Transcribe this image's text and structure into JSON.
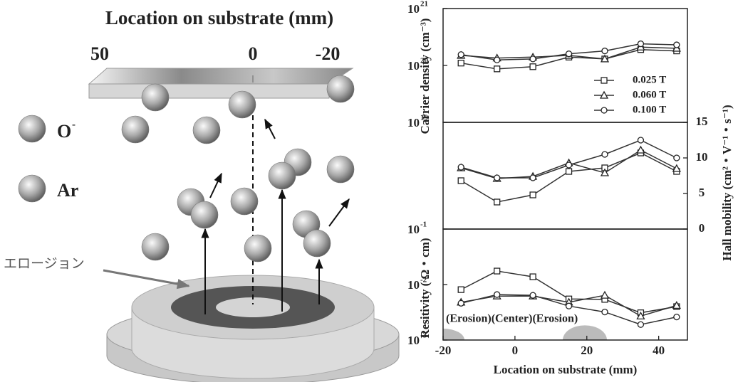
{
  "diagram": {
    "title": "Location on substrate (mm)",
    "positions": [
      "50",
      "0",
      "-20"
    ],
    "legend": [
      {
        "label": "O",
        "sup": "-"
      },
      {
        "label": "Ar"
      }
    ],
    "erosion_label": "エロージョン"
  },
  "chart_data": [
    {
      "type": "line",
      "yscale": "log",
      "ylabel": "Carrier density (cm⁻³)",
      "x": [
        -15,
        -5,
        5,
        15,
        25,
        35,
        45
      ],
      "xlim": [
        -20,
        48
      ],
      "ylim": [
        1e+19,
        1e+21
      ],
      "yticks": [
        {
          "value": 1e+19,
          "label": "10",
          "label_sup": "19"
        },
        {
          "value": 1e+20,
          "label": "10",
          "label_sup": "20"
        },
        {
          "value": 1e+21,
          "label": "10",
          "label_sup": "21"
        }
      ],
      "series": [
        {
          "name": "0.025 T",
          "marker": "square",
          "color": "#333",
          "values": [
            1.1e+20,
            8.7e+19,
            9.5e+19,
            1.4e+20,
            1.3e+20,
            1.9e+20,
            1.8e+20
          ]
        },
        {
          "name": "0.060 T",
          "marker": "triangle",
          "color": "#333",
          "values": [
            1.5e+20,
            1.35e+20,
            1.4e+20,
            1.5e+20,
            1.3e+20,
            2.1e+20,
            2e+20
          ]
        },
        {
          "name": "0.100 T",
          "marker": "circle",
          "color": "#333",
          "values": [
            1.55e+20,
            1.25e+20,
            1.3e+20,
            1.6e+20,
            1.8e+20,
            2.4e+20,
            2.3e+20
          ]
        }
      ]
    },
    {
      "type": "line",
      "y2label": "Hall mobility (cm²・V⁻¹・s⁻¹)",
      "x": [
        -15,
        -5,
        5,
        15,
        25,
        35,
        45
      ],
      "xlim": [
        -20,
        48
      ],
      "y2lim": [
        0,
        15
      ],
      "y2ticks": [
        0,
        5,
        10,
        15
      ],
      "series": [
        {
          "axis": "y2",
          "marker": "square",
          "color": "#333",
          "values": [
            6.8,
            3.8,
            4.8,
            8.1,
            8.6,
            10.7,
            8.1
          ]
        },
        {
          "axis": "y2",
          "marker": "triangle",
          "color": "#333",
          "values": [
            8.6,
            7.1,
            7.4,
            9.3,
            7.9,
            11.1,
            8.5
          ]
        },
        {
          "axis": "y2",
          "marker": "circle",
          "color": "#333",
          "values": [
            8.7,
            7.2,
            7.2,
            9.0,
            10.5,
            12.5,
            10.0
          ]
        }
      ]
    },
    {
      "type": "line",
      "yscale": "log",
      "ylabel": "Resitivity ( Ω・cm)",
      "xlabel": "Location on substrate (mm)",
      "annotation": "(Erosion)(Center)(Erosion)",
      "x": [
        -15,
        -5,
        5,
        15,
        25,
        35,
        45
      ],
      "xlim": [
        -20,
        48
      ],
      "xticks": [
        -20,
        0,
        20,
        40
      ],
      "ylim": [
        0.001,
        0.1
      ],
      "yticks": [
        {
          "value": 0.001,
          "label": "10",
          "label_sup": "-3"
        },
        {
          "value": 0.01,
          "label": "10",
          "label_sup": "-2"
        },
        {
          "value": 0.1,
          "label": "10",
          "label_sup": "-1"
        }
      ],
      "series": [
        {
          "marker": "square",
          "color": "#333",
          "values": [
            0.0081,
            0.0175,
            0.0138,
            0.0055,
            0.0054,
            0.0031,
            0.004
          ]
        },
        {
          "marker": "triangle",
          "color": "#333",
          "values": [
            0.0048,
            0.0062,
            0.0062,
            0.0048,
            0.0064,
            0.0027,
            0.0042
          ]
        },
        {
          "marker": "circle",
          "color": "#333",
          "values": [
            0.0046,
            0.0066,
            0.0064,
            0.0041,
            0.0032,
            0.0019,
            0.0026
          ]
        }
      ]
    }
  ]
}
